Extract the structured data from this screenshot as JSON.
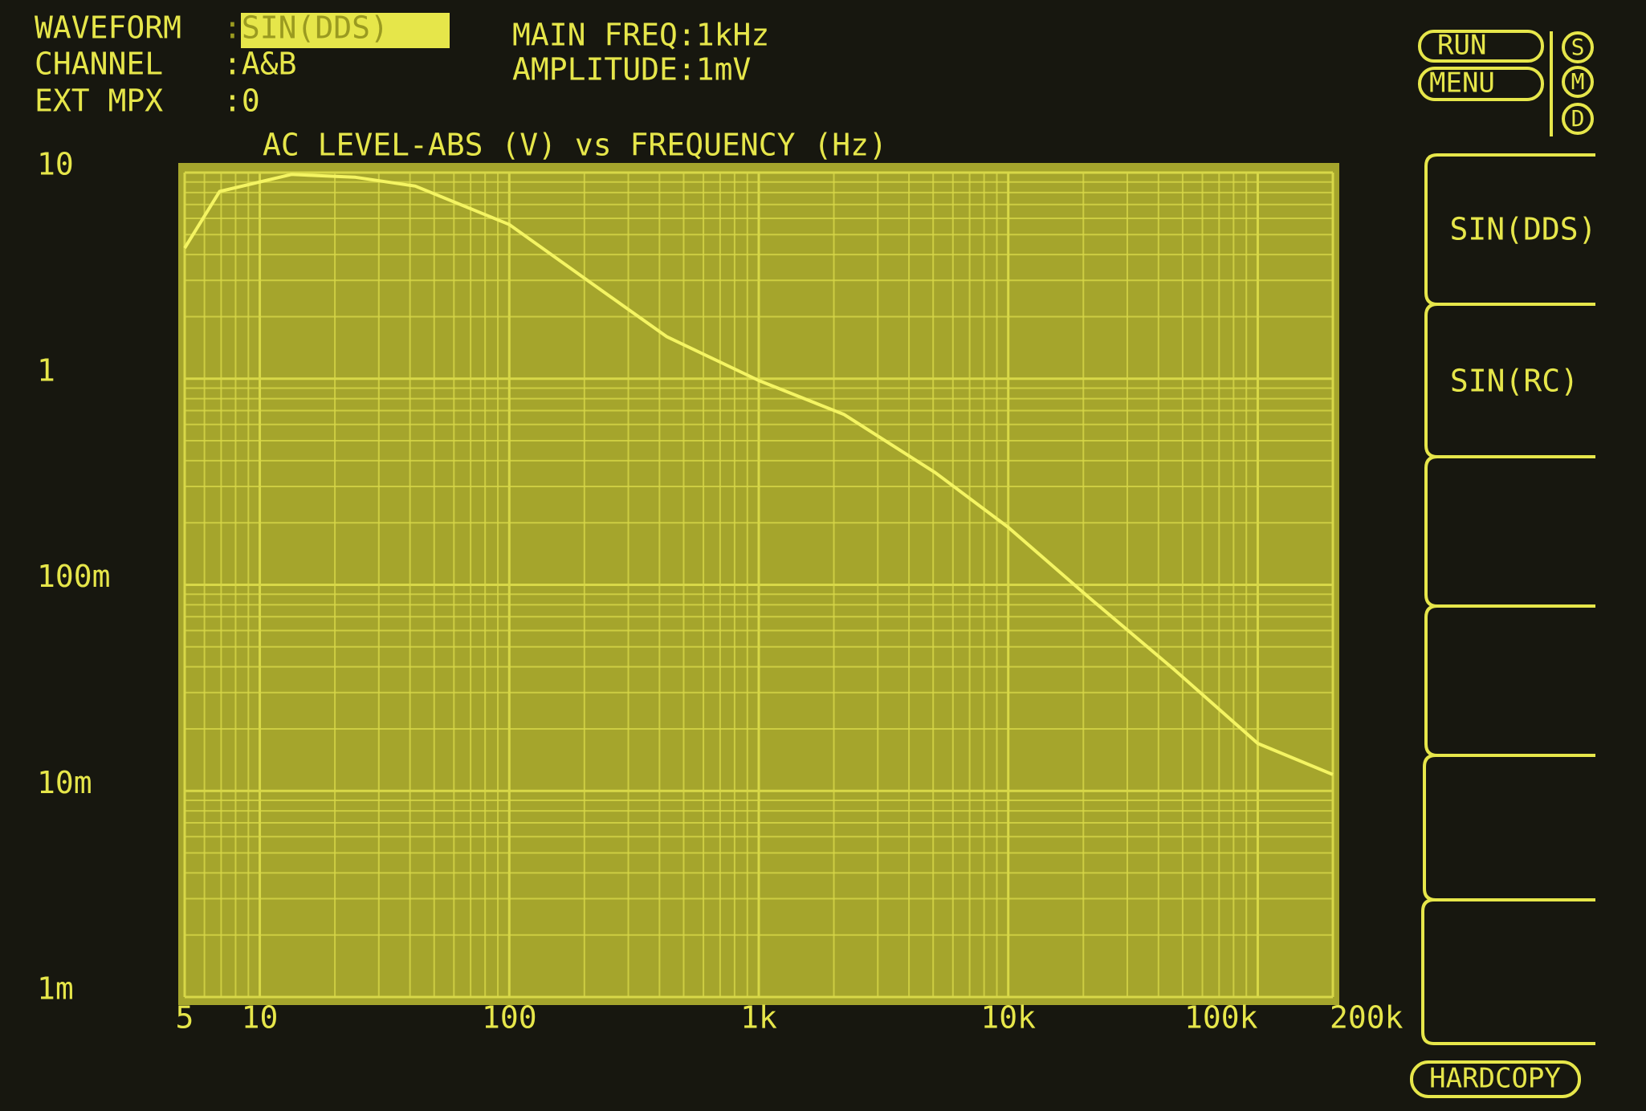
{
  "header": {
    "rows": [
      {
        "label": "WAVEFORM",
        "value": ":SIN(DDS)"
      },
      {
        "label": "CHANNEL",
        "value": ":A&B"
      },
      {
        "label": "EXT MPX",
        "value": ":0"
      }
    ],
    "settings": [
      "MAIN FREQ:1kHz",
      "AMPLITUDE:1mV"
    ]
  },
  "status": {
    "buttons": [
      "RUN",
      "MENU"
    ],
    "indicators": [
      "S",
      "M",
      "D"
    ]
  },
  "softkeys": [
    "SIN(DDS)",
    "SIN(RC)"
  ],
  "footer_button": "HARDCOPY",
  "chart_data": {
    "type": "line",
    "title": "AC LEVEL-ABS (V) vs FREQUENCY (Hz)",
    "x": [
      5,
      6.9,
      13.4,
      24,
      42,
      100,
      214,
      427,
      1000,
      2200,
      5100,
      10000,
      21000,
      46000,
      100000,
      200000
    ],
    "series": [
      {
        "name": "A&B",
        "color": "#f4f462",
        "values": [
          4.3,
          8.1,
          9.8,
          9.5,
          8.6,
          5.6,
          2.9,
          1.6,
          0.98,
          0.67,
          0.35,
          0.19,
          0.087,
          0.039,
          0.017,
          0.012
        ]
      }
    ],
    "xlim": [
      5,
      200000
    ],
    "ylim": [
      0.001,
      10
    ],
    "xlog": true,
    "ylog": true,
    "grid": true,
    "xticks": [
      5,
      10,
      100,
      {
        "value": 1000,
        "label": "1k"
      },
      {
        "value": 10000,
        "label": "10k"
      },
      {
        "value": 100000,
        "label": "100k"
      },
      {
        "value": 200000,
        "label": "200k"
      }
    ],
    "yticks": [
      {
        "value": 0.001,
        "label": "1m"
      },
      {
        "value": 0.01,
        "label": "10m"
      },
      {
        "value": 0.1,
        "label": "100m"
      },
      1,
      10
    ]
  }
}
